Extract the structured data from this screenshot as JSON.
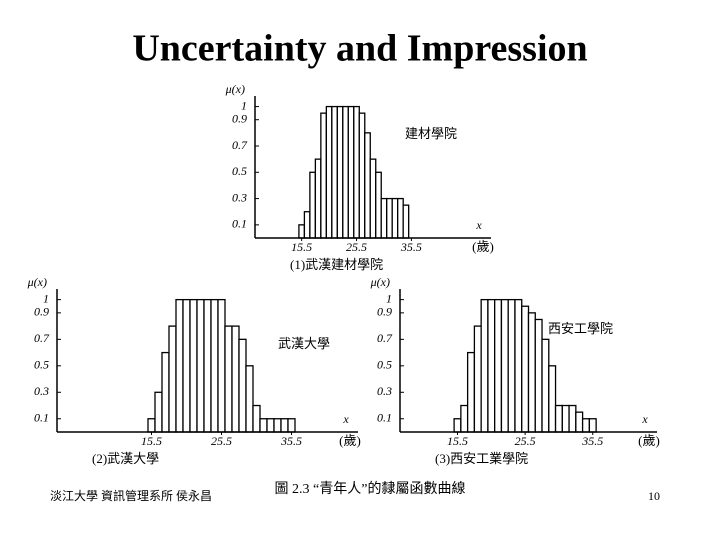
{
  "title": "Uncertainty and Impression",
  "caption": "圖 2.3 “青年人”的隸屬函數曲線",
  "footer": {
    "left": "淡江大學 資訊管理系所 侯永昌",
    "page": "10"
  },
  "chart_data": [
    {
      "type": "bar",
      "subtitle": "(1)武漢建材學院",
      "annotation": "建材學院",
      "ylabel": "μ(x)",
      "xlabel": "x",
      "xunit": "(歲)",
      "x": [
        15,
        16,
        17,
        18,
        19,
        20,
        21,
        22,
        23,
        24,
        25,
        26,
        27,
        28,
        29,
        30,
        31,
        32,
        33,
        34
      ],
      "values": [
        0.1,
        0.2,
        0.5,
        0.6,
        0.95,
        1,
        1,
        1,
        1,
        1,
        1,
        0.95,
        0.8,
        0.6,
        0.5,
        0.3,
        0.3,
        0.3,
        0.3,
        0.25
      ],
      "xlim": [
        7,
        50
      ],
      "ylim": [
        0,
        1.05
      ],
      "xticks": [
        15.5,
        25.5,
        35.5
      ],
      "yticks": [
        0.1,
        0.3,
        0.5,
        0.7,
        0.9,
        1
      ]
    },
    {
      "type": "bar",
      "subtitle": "(2)武漢大學",
      "annotation": "武漢大學",
      "ylabel": "μ(x)",
      "xlabel": "x",
      "xunit": "(歲)",
      "x": [
        15,
        16,
        17,
        18,
        19,
        20,
        21,
        22,
        23,
        24,
        25,
        26,
        27,
        28,
        29,
        30,
        31,
        32,
        33,
        34,
        35
      ],
      "values": [
        0.1,
        0.3,
        0.6,
        0.8,
        1,
        1,
        1,
        1,
        1,
        1,
        1,
        0.8,
        0.8,
        0.7,
        0.5,
        0.2,
        0.1,
        0.1,
        0.1,
        0.1,
        0.1
      ],
      "xlim": [
        2,
        45
      ],
      "ylim": [
        0,
        1.05
      ],
      "xticks": [
        15.5,
        25.5,
        35.5
      ],
      "yticks": [
        0.1,
        0.3,
        0.5,
        0.7,
        0.9,
        1
      ]
    },
    {
      "type": "bar",
      "subtitle": "(3)西安工業學院",
      "annotation": "西安工學院",
      "ylabel": "μ(x)",
      "xlabel": "x",
      "xunit": "(歲)",
      "x": [
        15,
        16,
        17,
        18,
        19,
        20,
        21,
        22,
        23,
        24,
        25,
        26,
        27,
        28,
        29,
        30,
        31,
        32,
        33,
        34,
        35
      ],
      "values": [
        0.1,
        0.2,
        0.6,
        0.8,
        1,
        1,
        1,
        1,
        1,
        1,
        0.95,
        0.9,
        0.85,
        0.7,
        0.5,
        0.2,
        0.2,
        0.2,
        0.15,
        0.1,
        0.1
      ],
      "xlim": [
        7,
        45
      ],
      "ylim": [
        0,
        1.05
      ],
      "xticks": [
        15.5,
        25.5,
        35.5
      ],
      "yticks": [
        0.1,
        0.3,
        0.5,
        0.7,
        0.9,
        1
      ]
    }
  ]
}
